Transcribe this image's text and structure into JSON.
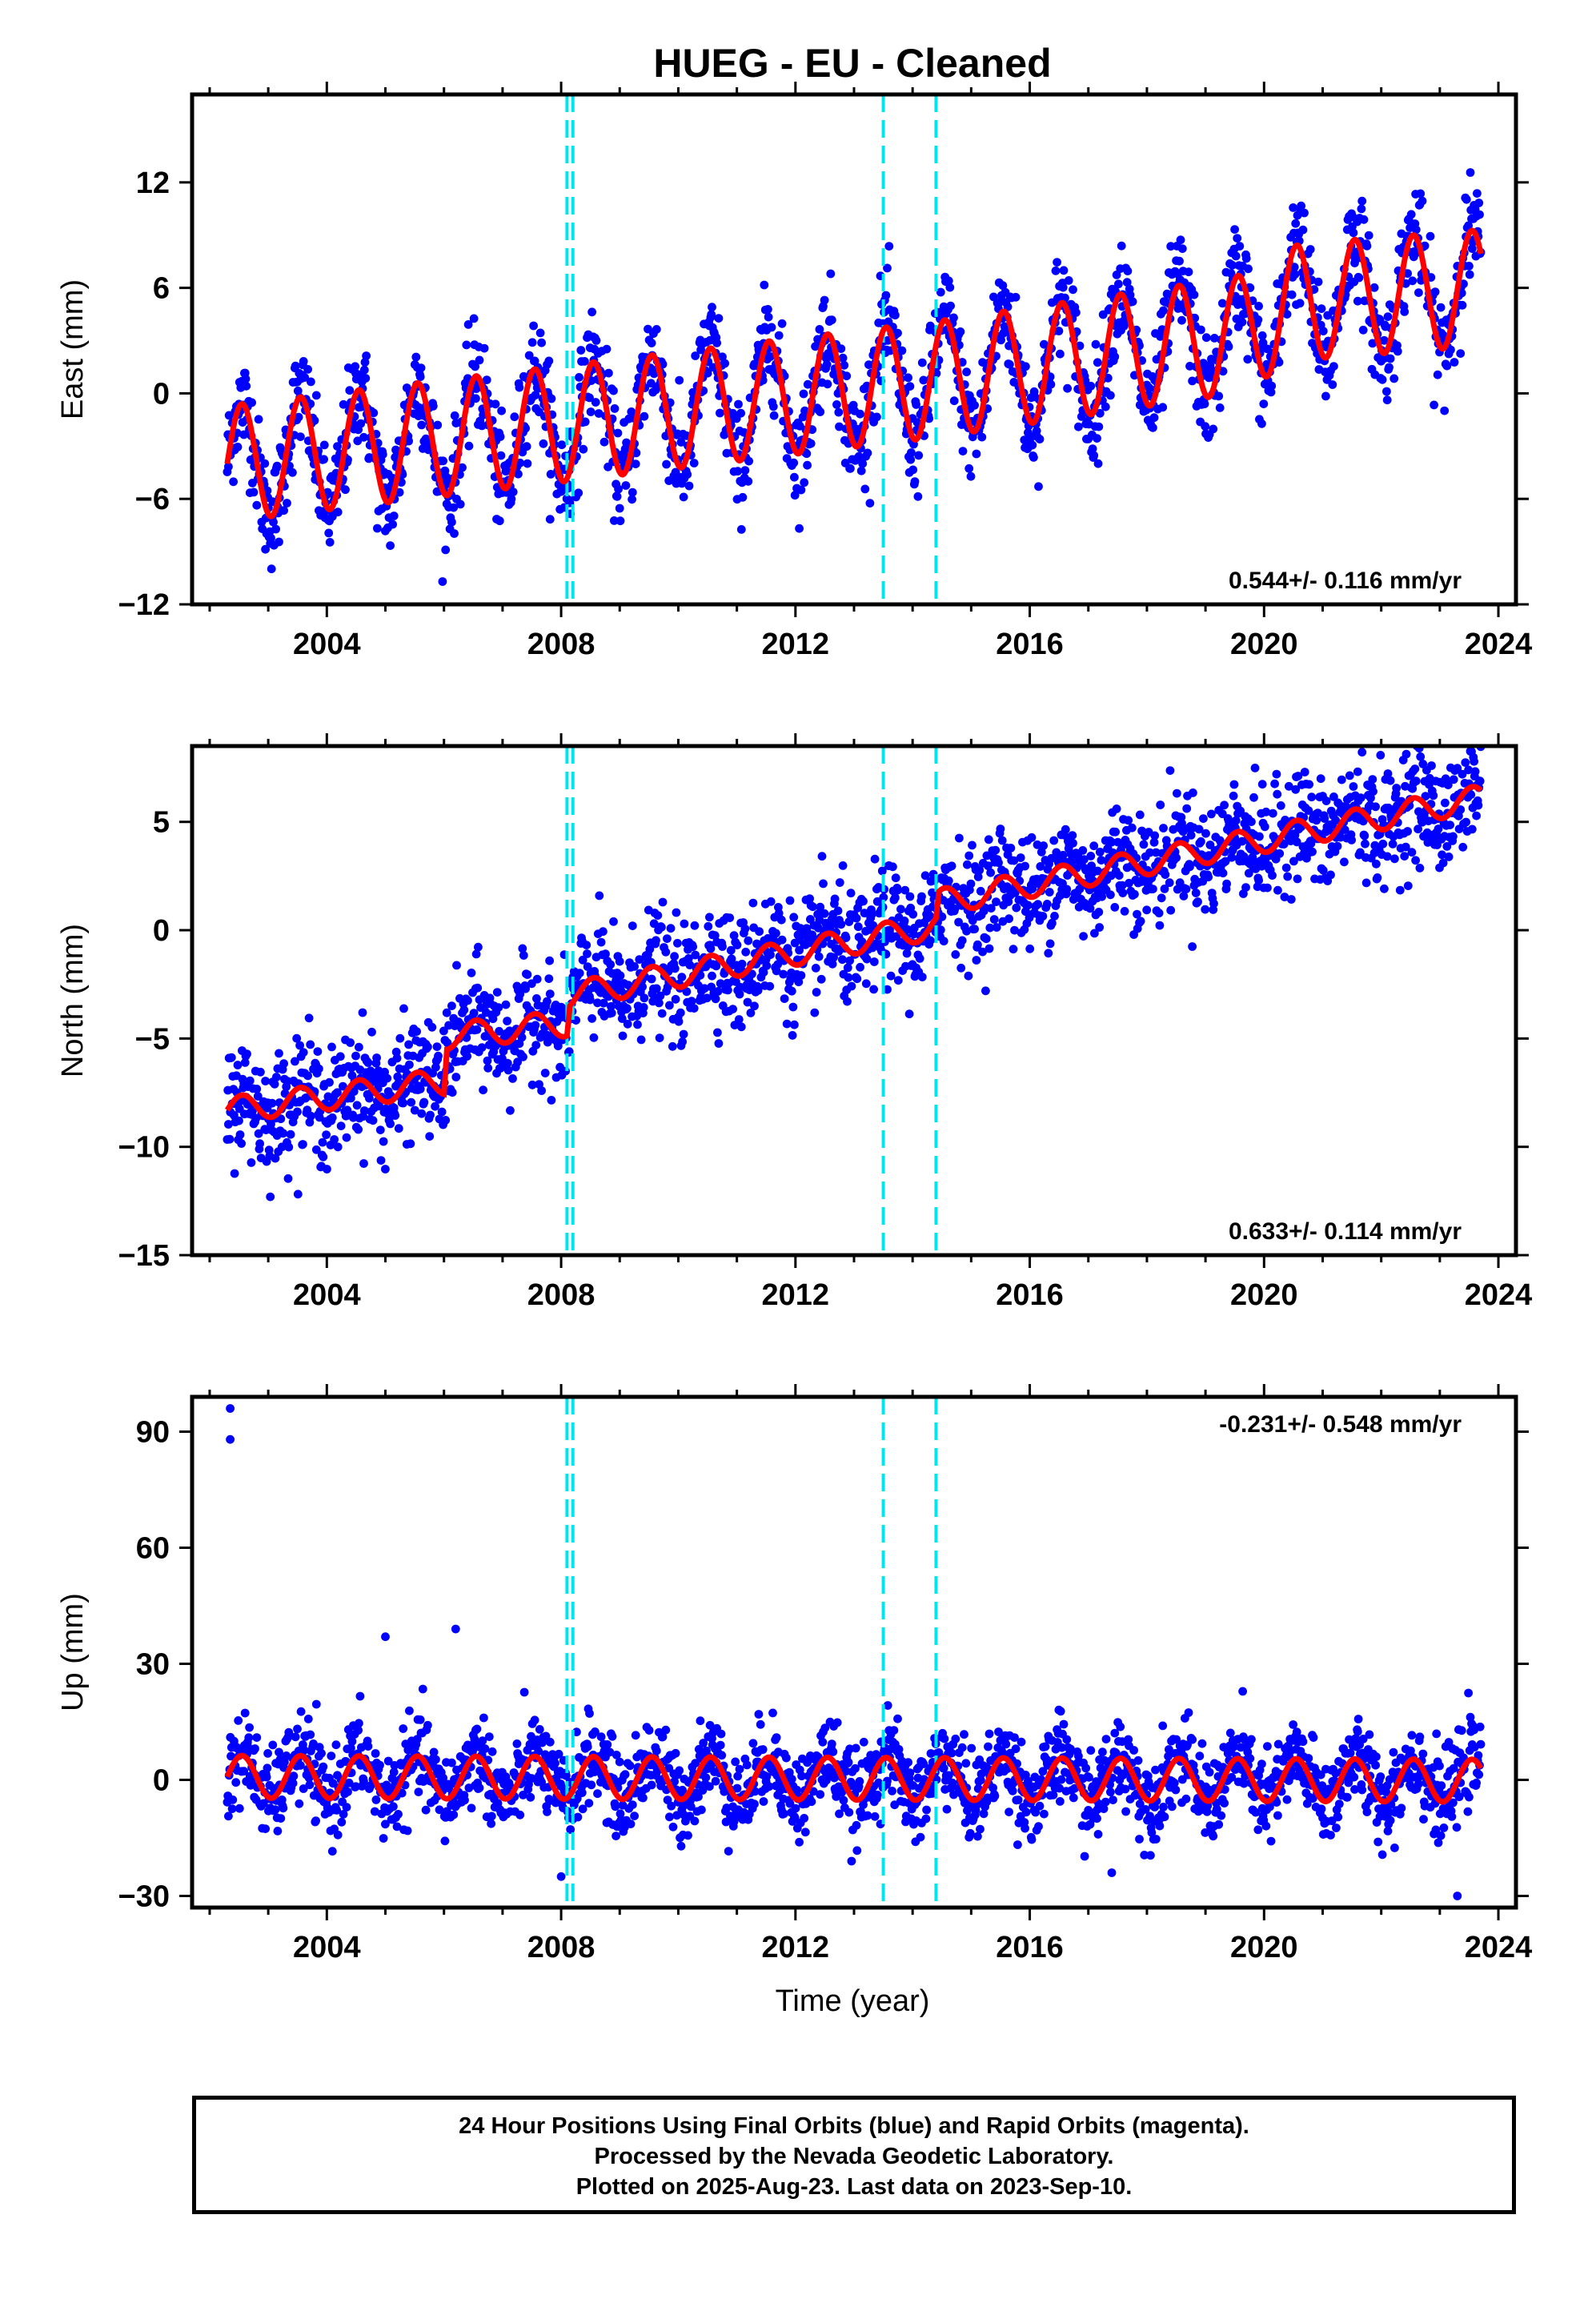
{
  "colors": {
    "points": "#0000ff",
    "model": "#ff0000",
    "offsets": "#00e5ee",
    "frame": "#000000"
  },
  "chart_data": {
    "type": "scatter",
    "title": "HUEG  - EU - Cleaned",
    "xlabel": "Time (year)",
    "x_ticks": [
      "2004",
      "2008",
      "2012",
      "2016",
      "2020",
      "2024"
    ],
    "xlim": [
      2001.7,
      2024.3
    ],
    "offset_epochs": [
      2008.1,
      2008.2,
      2013.5,
      2014.4
    ],
    "data_span": [
      2002.3,
      2023.7
    ],
    "panels": [
      {
        "ylabel": "East (mm)",
        "ylim": [
          -12,
          17
        ],
        "y_ticks": [
          "12",
          "6",
          "0",
          "-6",
          "-12"
        ],
        "y_tick_values": [
          12,
          6,
          0,
          -6,
          -12
        ],
        "rate_text": "0.544+/- 0.116 mm/yr",
        "rate_position": "bottom-right",
        "annual_amplitude": 3.3,
        "noise_sd": 1.5,
        "trend_points": [
          [
            2002.3,
            -4.0
          ],
          [
            2008.1,
            -1.7
          ],
          [
            2014.4,
            0.8
          ],
          [
            2019.5,
            3.3
          ],
          [
            2020.6,
            5.2
          ],
          [
            2023.7,
            6.0
          ]
        ]
      },
      {
        "ylabel": "North (mm)",
        "ylim": [
          -15,
          8.5
        ],
        "y_ticks": [
          "5",
          "0",
          "-5",
          "-10",
          "-15"
        ],
        "y_tick_values": [
          5,
          0,
          -5,
          -10,
          -15
        ],
        "rate_text": "0.633+/- 0.114 mm/yr",
        "rate_position": "bottom-right",
        "annual_amplitude": 0.6,
        "noise_sd": 1.3,
        "trend_points": [
          [
            2002.3,
            -8.3
          ],
          [
            2006.0,
            -7.0
          ],
          [
            2006.05,
            -4.9
          ],
          [
            2008.1,
            -4.3
          ],
          [
            2008.15,
            -3.0
          ],
          [
            2014.4,
            0.2
          ],
          [
            2014.45,
            1.3
          ],
          [
            2023.7,
            6.1
          ]
        ]
      },
      {
        "ylabel": "Up (mm)",
        "ylim": [
          -33,
          99
        ],
        "y_ticks": [
          "90",
          "60",
          "30",
          "0",
          "-30"
        ],
        "y_tick_values": [
          90,
          60,
          30,
          0,
          -30
        ],
        "rate_text": "-0.231+/- 0.548 mm/yr",
        "rate_position": "top-right",
        "annual_amplitude": 5.5,
        "noise_sd": 5.5,
        "trend_points": [
          [
            2002.3,
            0.8
          ],
          [
            2023.7,
            -0.2
          ]
        ],
        "outliers": [
          [
            2002.35,
            96
          ],
          [
            2002.35,
            88
          ],
          [
            2005.0,
            37
          ],
          [
            2006.2,
            39
          ],
          [
            2008.0,
            -25
          ],
          [
            2017.4,
            -24
          ],
          [
            2023.3,
            -30
          ]
        ]
      }
    ]
  },
  "footer": {
    "line1": "24 Hour Positions Using Final Orbits (blue) and Rapid Orbits (magenta).",
    "line2": "Processed by the Nevada Geodetic Laboratory.",
    "line3": "Plotted on 2025-Aug-23. Last data on 2023-Sep-10."
  }
}
